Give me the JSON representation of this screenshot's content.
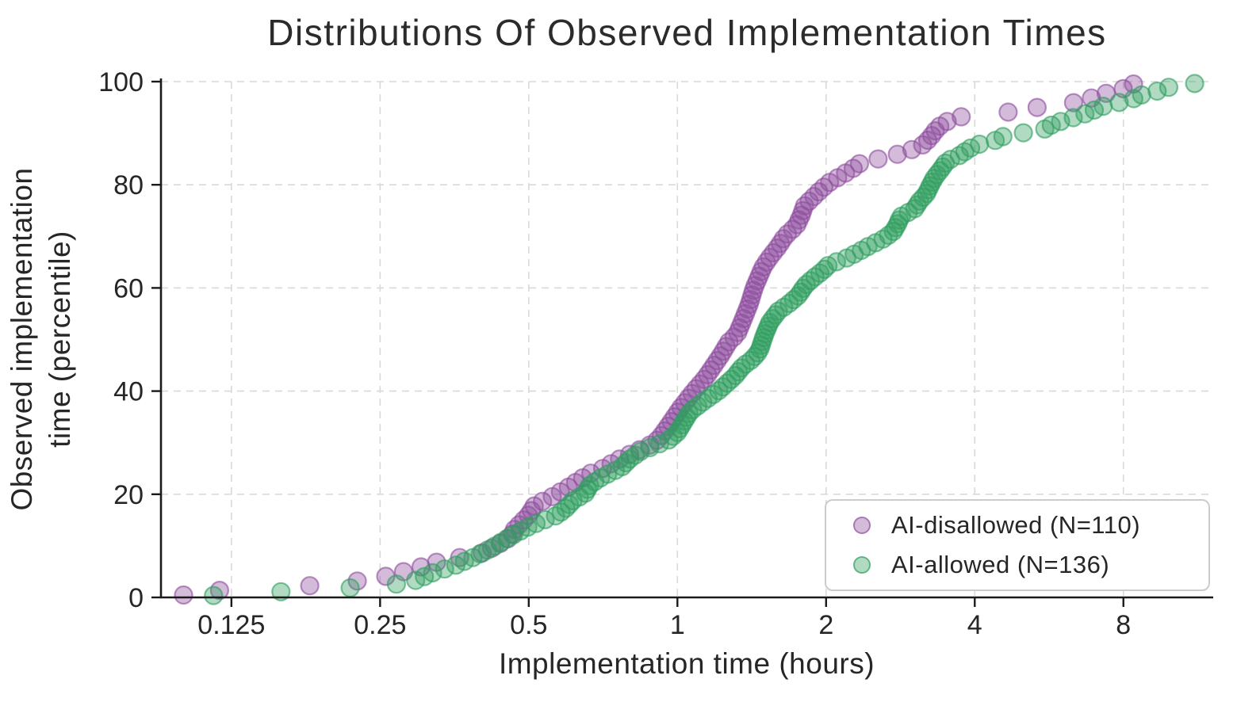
{
  "title": "Distributions Of Observed Implementation Times",
  "chart_data": {
    "type": "scatter",
    "title": "Distributions Of Observed Implementation Times",
    "xlabel": "Implementation time (hours)",
    "ylabel": "Observed implementation time (percentile)",
    "ylabel_lines": [
      "Observed implementation",
      "time (percentile)"
    ],
    "x_scale": "log2",
    "xlim": [
      0.09,
      12.16
    ],
    "ylim": [
      0,
      100
    ],
    "grid": "dashed",
    "legend_position": "lower right",
    "x_ticks": [
      0.125,
      0.25,
      0.5,
      1,
      2,
      4,
      8
    ],
    "x_tick_labels": [
      "0.125",
      "0.25",
      "0.5",
      "1",
      "2",
      "4",
      "8"
    ],
    "y_ticks": [
      0,
      20,
      40,
      60,
      80,
      100
    ],
    "y_tick_labels": [
      "0",
      "20",
      "40",
      "60",
      "80",
      "100"
    ],
    "colors": {
      "grid": "#d9d9d9",
      "axis": "#1a1a1a",
      "text": "#262626",
      "purple": "#8e4d9e",
      "green": "#2f9e5f"
    },
    "series": [
      {
        "name": "AI-disallowed (N=110)",
        "n": 110,
        "color": "#8e4d9e",
        "quantiles_percentile_hours": [
          [
            0.5,
            0.1
          ],
          [
            1,
            0.1
          ],
          [
            2.5,
            0.2
          ],
          [
            3.8,
            0.25
          ],
          [
            5.8,
            0.3
          ],
          [
            7,
            0.33
          ],
          [
            8.5,
            0.4
          ],
          [
            10,
            0.43
          ],
          [
            11.7,
            0.46
          ],
          [
            13.2,
            0.468
          ],
          [
            16,
            0.5
          ],
          [
            18,
            0.515
          ],
          [
            19.2,
            0.55
          ],
          [
            21.3,
            0.6
          ],
          [
            23.9,
            0.66
          ],
          [
            25.1,
            0.71
          ],
          [
            26.6,
            0.755
          ],
          [
            28.2,
            0.82
          ],
          [
            30,
            0.9
          ],
          [
            31.5,
            0.93
          ],
          [
            34.6,
            0.98
          ],
          [
            37,
            1.02
          ],
          [
            40,
            1.08
          ],
          [
            42.6,
            1.14
          ],
          [
            44.7,
            1.18
          ],
          [
            46.7,
            1.22
          ],
          [
            49.5,
            1.27
          ],
          [
            51,
            1.32
          ],
          [
            54,
            1.36
          ],
          [
            57,
            1.4
          ],
          [
            60,
            1.43
          ],
          [
            62,
            1.46
          ],
          [
            64,
            1.49
          ],
          [
            66,
            1.54
          ],
          [
            68,
            1.6
          ],
          [
            70,
            1.65
          ],
          [
            72,
            1.74
          ],
          [
            74,
            1.78
          ],
          [
            76,
            1.81
          ],
          [
            77.5,
            1.88
          ],
          [
            79,
            1.95
          ],
          [
            80.3,
            2.02
          ],
          [
            81.8,
            2.15
          ],
          [
            83.3,
            2.28
          ],
          [
            84.4,
            2.36
          ],
          [
            85.3,
            2.65
          ],
          [
            86.5,
            2.93
          ],
          [
            87.8,
            3.15
          ],
          [
            89,
            3.24
          ],
          [
            90.5,
            3.33
          ],
          [
            92,
            3.45
          ],
          [
            93.2,
            3.76
          ],
          [
            94.2,
            4.8
          ],
          [
            95,
            5.35
          ],
          [
            96,
            6.45
          ],
          [
            97.1,
            7.05
          ],
          [
            97.6,
            7.3
          ],
          [
            99,
            8.25
          ],
          [
            100,
            8.5
          ]
        ]
      },
      {
        "name": "AI-allowed (N=136)",
        "n": 136,
        "color": "#2f9e5f",
        "quantiles_percentile_hours": [
          [
            0.4,
            0.115
          ],
          [
            1.8,
            0.215
          ],
          [
            2.7,
            0.28
          ],
          [
            3.5,
            0.3
          ],
          [
            4.6,
            0.315
          ],
          [
            5.4,
            0.335
          ],
          [
            6.2,
            0.355
          ],
          [
            7.7,
            0.385
          ],
          [
            8.8,
            0.405
          ],
          [
            10,
            0.428
          ],
          [
            11.6,
            0.455
          ],
          [
            13.5,
            0.495
          ],
          [
            14.8,
            0.53
          ],
          [
            15.9,
            0.57
          ],
          [
            17.3,
            0.595
          ],
          [
            18.8,
            0.615
          ],
          [
            20.1,
            0.65
          ],
          [
            21.8,
            0.665
          ],
          [
            23.4,
            0.705
          ],
          [
            25.2,
            0.77
          ],
          [
            26.8,
            0.8
          ],
          [
            28.4,
            0.845
          ],
          [
            29.4,
            0.9
          ],
          [
            30.5,
            0.96
          ],
          [
            32,
            1.0
          ],
          [
            34,
            1.03
          ],
          [
            36,
            1.06
          ],
          [
            38,
            1.13
          ],
          [
            40,
            1.21
          ],
          [
            41.5,
            1.26
          ],
          [
            43,
            1.31
          ],
          [
            44.8,
            1.355
          ],
          [
            46.2,
            1.42
          ],
          [
            47.8,
            1.465
          ],
          [
            50,
            1.49
          ],
          [
            51.5,
            1.51
          ],
          [
            53.4,
            1.54
          ],
          [
            55.5,
            1.6
          ],
          [
            57.1,
            1.69
          ],
          [
            58.6,
            1.76
          ],
          [
            60.4,
            1.81
          ],
          [
            61.8,
            1.88
          ],
          [
            63.3,
            1.97
          ],
          [
            64.6,
            2.03
          ],
          [
            65.6,
            2.18
          ],
          [
            67,
            2.33
          ],
          [
            68,
            2.43
          ],
          [
            69.4,
            2.6
          ],
          [
            70.8,
            2.73
          ],
          [
            72.3,
            2.79
          ],
          [
            73.8,
            2.83
          ],
          [
            75.3,
            3.02
          ],
          [
            76.8,
            3.09
          ],
          [
            78.2,
            3.19
          ],
          [
            79.8,
            3.25
          ],
          [
            81.5,
            3.32
          ],
          [
            83,
            3.42
          ],
          [
            84.6,
            3.51
          ],
          [
            85.7,
            3.73
          ],
          [
            86.8,
            3.87
          ],
          [
            87.7,
            4.02
          ],
          [
            88.6,
            4.4
          ],
          [
            89.6,
            4.62
          ],
          [
            90.6,
            5.5
          ],
          [
            91.5,
            5.7
          ],
          [
            92.5,
            6.05
          ],
          [
            93.4,
            6.55
          ],
          [
            94.4,
            6.95
          ],
          [
            95.5,
            7.4
          ],
          [
            96.4,
            8.3
          ],
          [
            97.3,
            8.6
          ],
          [
            98.2,
            9.4
          ],
          [
            98.8,
            9.7
          ],
          [
            99.5,
            11.1
          ],
          [
            100,
            11.3
          ]
        ]
      }
    ]
  },
  "legend": {
    "items": [
      {
        "label": "AI-disallowed (N=110)"
      },
      {
        "label": "AI-allowed (N=136)"
      }
    ]
  }
}
